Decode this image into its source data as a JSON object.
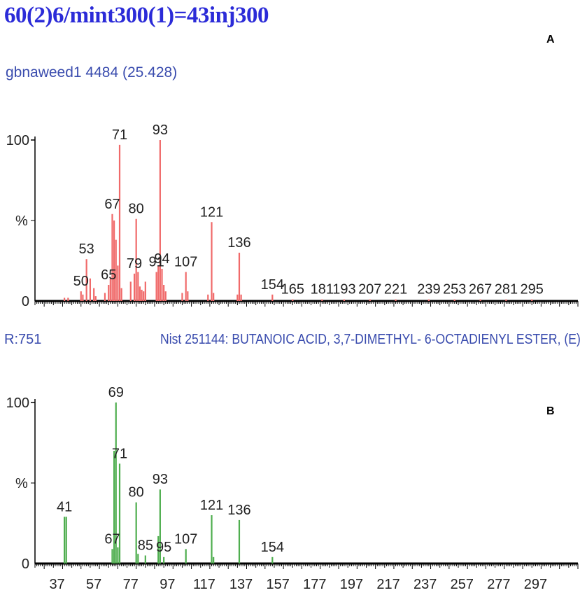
{
  "header": {
    "title": "60(2)6/mint300(1)=43inj300",
    "subtitle": "gbnaweed1 4484 (25.428)",
    "panel_a_label": "A",
    "panel_b_label": "B",
    "match_score": "R:751",
    "library_reference": "Nist  251144: BUTANOIC ACID, 3,7-DIMETHYL-   6-OCTADIENYL ESTER, (E)-"
  },
  "colors": {
    "title": "#2b2bd8",
    "sample_spectrum": "#f06a6a",
    "library_spectrum": "#4fae4f",
    "axis": "#000000"
  },
  "chart_data": [
    {
      "type": "bar",
      "panel": "A",
      "ylabel": "%",
      "y_ticks": [
        "0",
        "100"
      ],
      "ylim": [
        0,
        100
      ],
      "xlim": [
        25,
        320
      ],
      "x_ticks": [],
      "peak_labels": [
        50,
        53,
        65,
        67,
        71,
        79,
        80,
        91,
        93,
        94,
        107,
        121,
        136,
        154,
        165,
        181,
        193,
        207,
        221,
        239,
        253,
        267,
        281,
        295
      ],
      "peaks": [
        {
          "mz": 41,
          "intensity": 2
        },
        {
          "mz": 43,
          "intensity": 2
        },
        {
          "mz": 50,
          "intensity": 6
        },
        {
          "mz": 51,
          "intensity": 4
        },
        {
          "mz": 53,
          "intensity": 26
        },
        {
          "mz": 55,
          "intensity": 14
        },
        {
          "mz": 57,
          "intensity": 8
        },
        {
          "mz": 58,
          "intensity": 3
        },
        {
          "mz": 63,
          "intensity": 5
        },
        {
          "mz": 65,
          "intensity": 10
        },
        {
          "mz": 66,
          "intensity": 14
        },
        {
          "mz": 67,
          "intensity": 54
        },
        {
          "mz": 68,
          "intensity": 50
        },
        {
          "mz": 69,
          "intensity": 38
        },
        {
          "mz": 70,
          "intensity": 22
        },
        {
          "mz": 71,
          "intensity": 97
        },
        {
          "mz": 72,
          "intensity": 8
        },
        {
          "mz": 77,
          "intensity": 12
        },
        {
          "mz": 79,
          "intensity": 17
        },
        {
          "mz": 80,
          "intensity": 51
        },
        {
          "mz": 81,
          "intensity": 18
        },
        {
          "mz": 82,
          "intensity": 9
        },
        {
          "mz": 83,
          "intensity": 7
        },
        {
          "mz": 84,
          "intensity": 6
        },
        {
          "mz": 85,
          "intensity": 12
        },
        {
          "mz": 91,
          "intensity": 18
        },
        {
          "mz": 92,
          "intensity": 22
        },
        {
          "mz": 93,
          "intensity": 100
        },
        {
          "mz": 94,
          "intensity": 20
        },
        {
          "mz": 95,
          "intensity": 10
        },
        {
          "mz": 96,
          "intensity": 6
        },
        {
          "mz": 105,
          "intensity": 5
        },
        {
          "mz": 107,
          "intensity": 18
        },
        {
          "mz": 108,
          "intensity": 6
        },
        {
          "mz": 119,
          "intensity": 4
        },
        {
          "mz": 121,
          "intensity": 49
        },
        {
          "mz": 122,
          "intensity": 5
        },
        {
          "mz": 135,
          "intensity": 4
        },
        {
          "mz": 136,
          "intensity": 30
        },
        {
          "mz": 137,
          "intensity": 4
        },
        {
          "mz": 154,
          "intensity": 4
        },
        {
          "mz": 165,
          "intensity": 1
        },
        {
          "mz": 181,
          "intensity": 1
        },
        {
          "mz": 193,
          "intensity": 1
        },
        {
          "mz": 207,
          "intensity": 1
        },
        {
          "mz": 221,
          "intensity": 1
        },
        {
          "mz": 239,
          "intensity": 1
        },
        {
          "mz": 253,
          "intensity": 1
        },
        {
          "mz": 267,
          "intensity": 1
        },
        {
          "mz": 281,
          "intensity": 1
        },
        {
          "mz": 295,
          "intensity": 1
        }
      ]
    },
    {
      "type": "bar",
      "panel": "B",
      "ylabel": "%",
      "y_ticks": [
        "0",
        "100"
      ],
      "ylim": [
        0,
        100
      ],
      "xlim": [
        25,
        320
      ],
      "x_ticks": [
        37,
        57,
        77,
        97,
        117,
        137,
        157,
        177,
        197,
        217,
        237,
        257,
        277,
        297
      ],
      "peak_labels": [
        41,
        67,
        69,
        71,
        80,
        85,
        93,
        95,
        107,
        121,
        136,
        154
      ],
      "peaks": [
        {
          "mz": 41,
          "intensity": 29
        },
        {
          "mz": 42,
          "intensity": 29
        },
        {
          "mz": 67,
          "intensity": 9
        },
        {
          "mz": 68,
          "intensity": 70
        },
        {
          "mz": 69,
          "intensity": 100
        },
        {
          "mz": 70,
          "intensity": 10
        },
        {
          "mz": 71,
          "intensity": 62
        },
        {
          "mz": 80,
          "intensity": 38
        },
        {
          "mz": 81,
          "intensity": 6
        },
        {
          "mz": 85,
          "intensity": 5
        },
        {
          "mz": 92,
          "intensity": 17
        },
        {
          "mz": 93,
          "intensity": 46
        },
        {
          "mz": 95,
          "intensity": 4
        },
        {
          "mz": 107,
          "intensity": 9
        },
        {
          "mz": 121,
          "intensity": 30
        },
        {
          "mz": 122,
          "intensity": 4
        },
        {
          "mz": 136,
          "intensity": 27
        },
        {
          "mz": 154,
          "intensity": 4
        }
      ]
    }
  ]
}
